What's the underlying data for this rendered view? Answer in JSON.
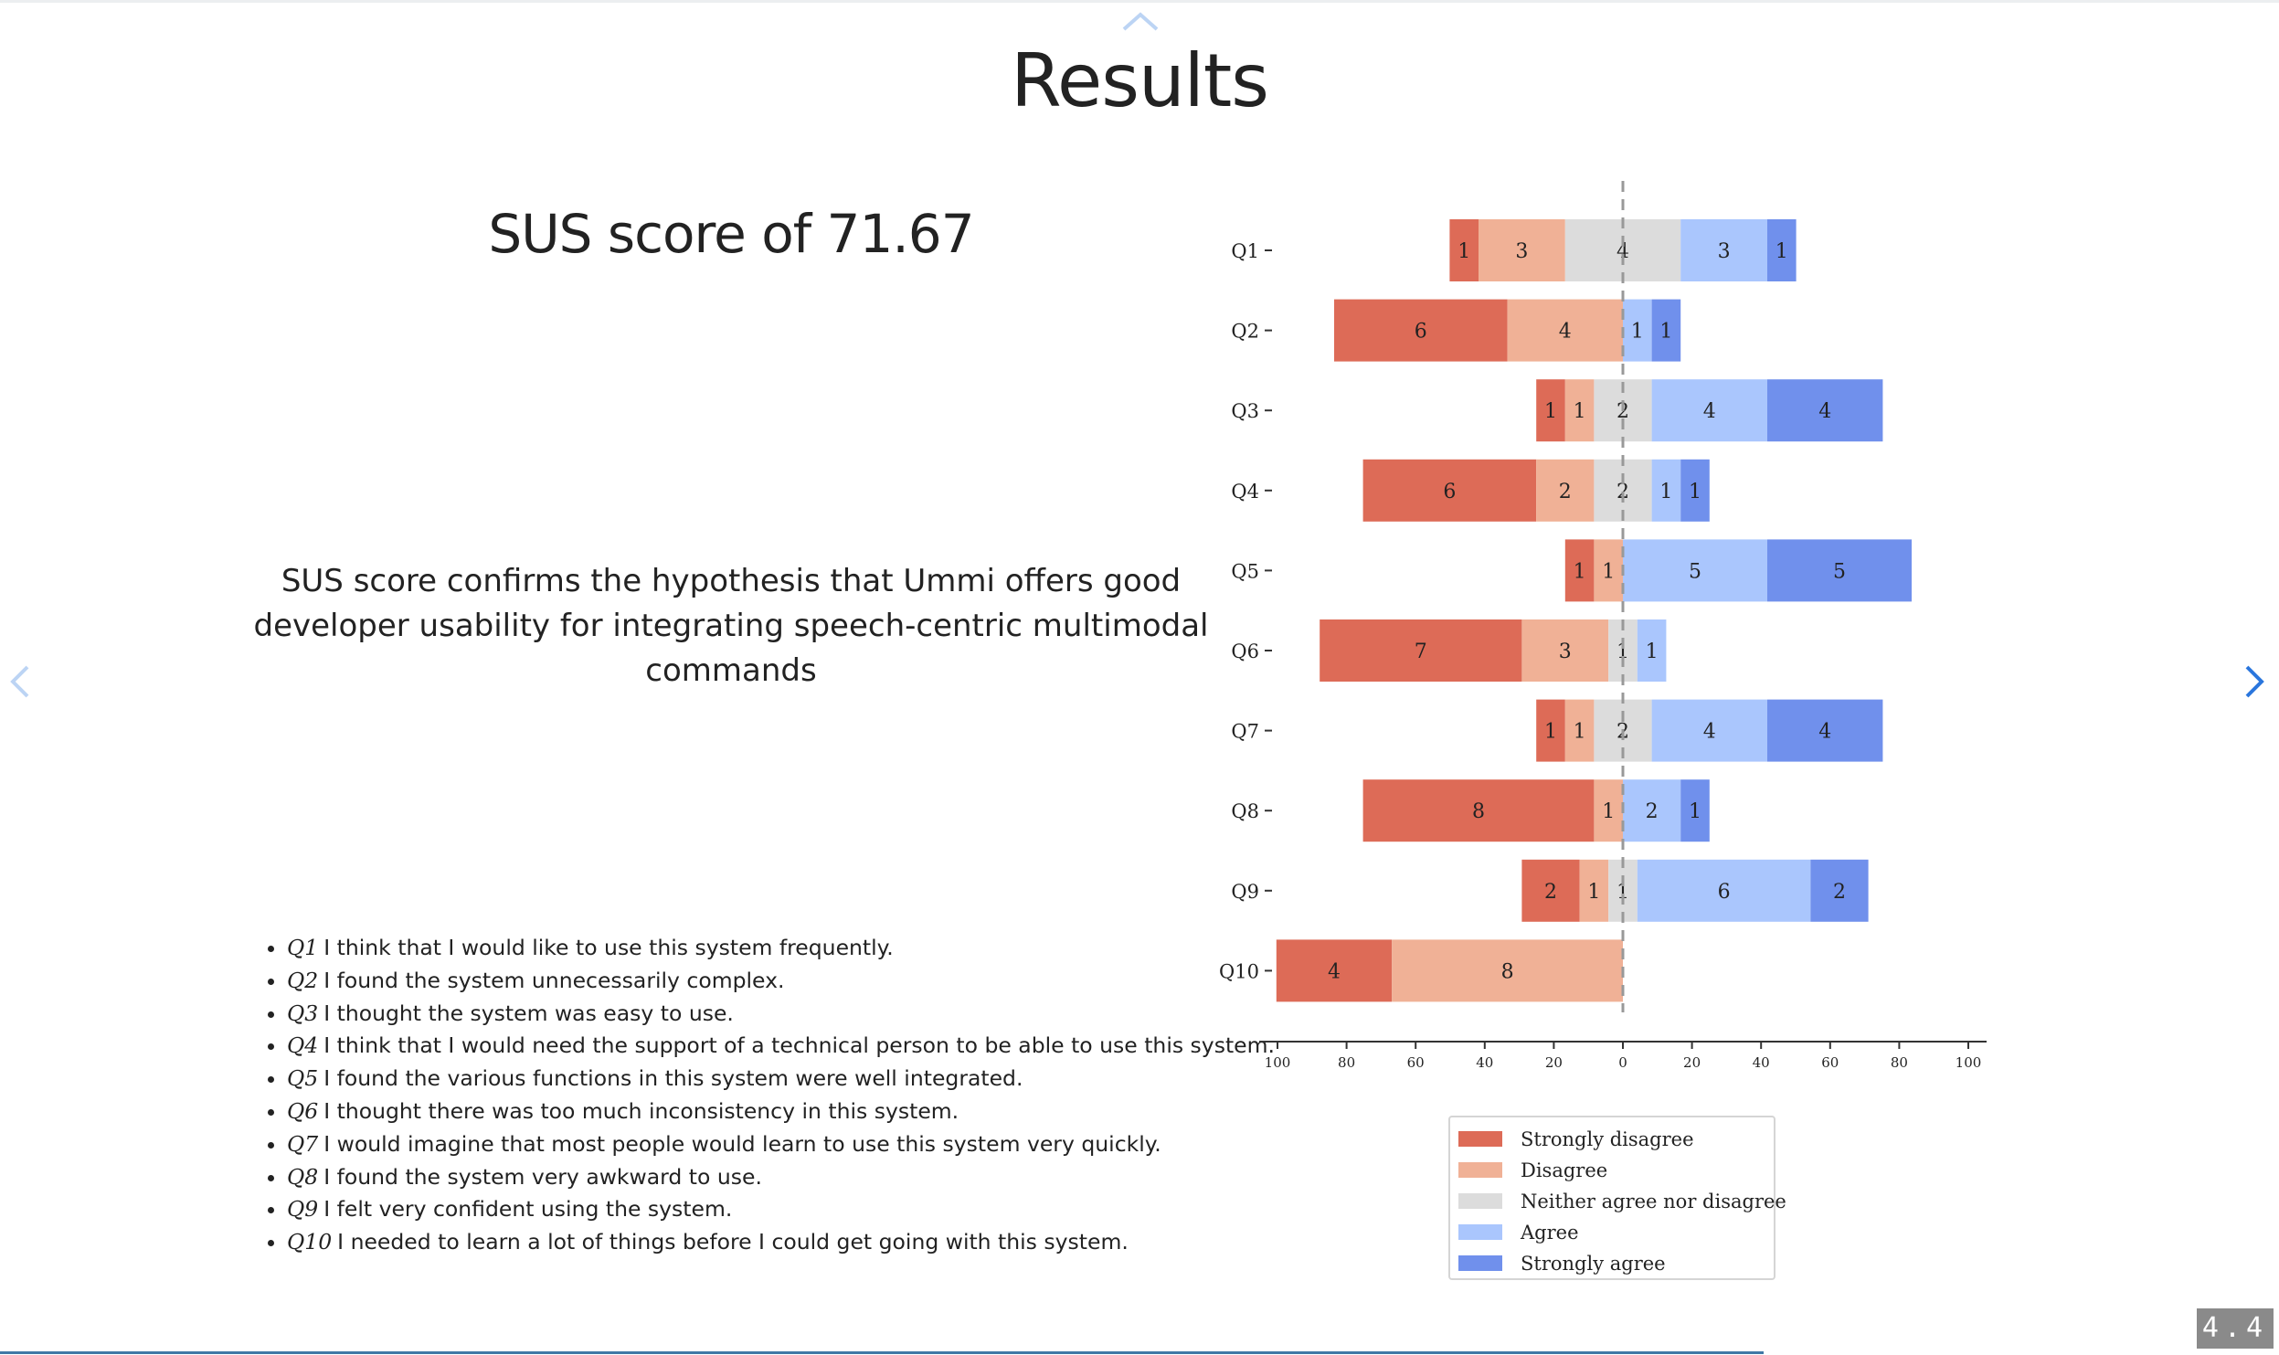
{
  "slide": {
    "title": "Results",
    "sus_score": "SUS score of 71.67",
    "conclusion": "SUS score confirms the hypothesis that Ummi offers good developer usability for integrating speech-centric multimodal commands",
    "page_number": "4.4"
  },
  "questions": [
    {
      "id": "Q1",
      "text": "I think that I would like to use this system frequently."
    },
    {
      "id": "Q2",
      "text": "I found the system unnecessarily complex."
    },
    {
      "id": "Q3",
      "text": "I thought the system was easy to use."
    },
    {
      "id": "Q4",
      "text": "I think that I would need the support of a technical person to be able to use this system."
    },
    {
      "id": "Q5",
      "text": "I found the various functions in this system were well integrated."
    },
    {
      "id": "Q6",
      "text": "I thought there was too much inconsistency in this system."
    },
    {
      "id": "Q7",
      "text": "I would imagine that most people would learn to use this system very quickly."
    },
    {
      "id": "Q8",
      "text": "I found the system very awkward to use."
    },
    {
      "id": "Q9",
      "text": "I felt very confident using the system."
    },
    {
      "id": "Q10",
      "text": "I needed to learn a lot of things before I could get going with this system."
    }
  ],
  "navigation": {
    "up_icon": "chevron-up-icon",
    "left_icon": "chevron-left-icon",
    "right_icon": "chevron-right-icon",
    "accent_color": "#2a76dd"
  },
  "chart_data": {
    "type": "bar",
    "orientation": "horizontal-diverging",
    "categories": [
      "Q1",
      "Q2",
      "Q3",
      "Q4",
      "Q5",
      "Q6",
      "Q7",
      "Q8",
      "Q9",
      "Q10"
    ],
    "series": [
      {
        "name": "Strongly disagree",
        "color": "#dd6b57",
        "values": [
          1,
          6,
          1,
          6,
          1,
          7,
          1,
          8,
          2,
          4
        ]
      },
      {
        "name": "Disagree",
        "color": "#f0b196",
        "values": [
          3,
          4,
          1,
          2,
          1,
          3,
          1,
          1,
          1,
          8
        ]
      },
      {
        "name": "Neither agree nor disagree",
        "color": "#dcdcdc",
        "values": [
          4,
          0,
          2,
          2,
          0,
          1,
          2,
          0,
          1,
          0
        ]
      },
      {
        "name": "Agree",
        "color": "#aac6fd",
        "values": [
          3,
          1,
          4,
          1,
          5,
          1,
          4,
          2,
          6,
          0
        ]
      },
      {
        "name": "Strongly agree",
        "color": "#7090ec",
        "values": [
          1,
          1,
          4,
          1,
          5,
          0,
          4,
          1,
          2,
          0
        ]
      }
    ],
    "xlim": [
      -100,
      100
    ],
    "x_ticks": [
      -100,
      -80,
      -60,
      -40,
      -20,
      0,
      20,
      40,
      60,
      80,
      100
    ],
    "x_tick_labels": [
      "100",
      "80",
      "60",
      "40",
      "20",
      "0",
      "20",
      "40",
      "60",
      "80",
      "100"
    ],
    "center_line": "dashed",
    "legend_position": "bottom-center",
    "xlabel": "",
    "ylabel": ""
  }
}
